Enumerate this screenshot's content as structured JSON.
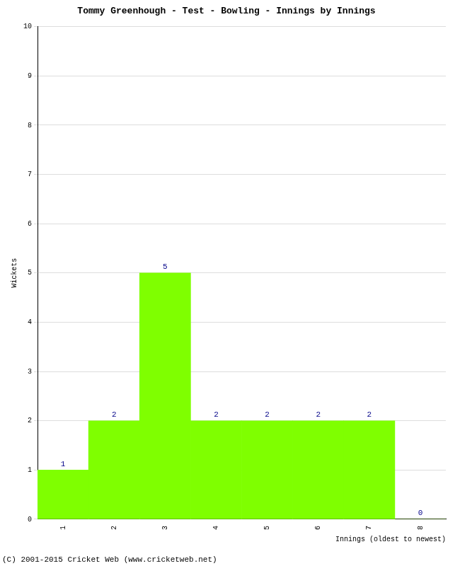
{
  "chart_data": {
    "type": "bar",
    "title": "Tommy Greenhough - Test - Bowling - Innings by Innings",
    "x_label": "Innings (oldest to newest)",
    "y_label": "Wickets",
    "annotations": [
      "(C) 2001-2015 Cricket Web (www.cricketweb.net)"
    ],
    "categories": [
      "1",
      "2",
      "3",
      "4",
      "5",
      "6",
      "7",
      "8"
    ],
    "values": [
      1,
      2,
      5,
      2,
      2,
      2,
      2,
      0
    ],
    "color": "#7fff00",
    "ylim": [
      0,
      10
    ],
    "yticks": [
      0,
      1,
      2,
      3,
      4,
      5,
      6,
      7,
      8,
      9,
      10
    ],
    "grid": true,
    "data_labels": true
  }
}
